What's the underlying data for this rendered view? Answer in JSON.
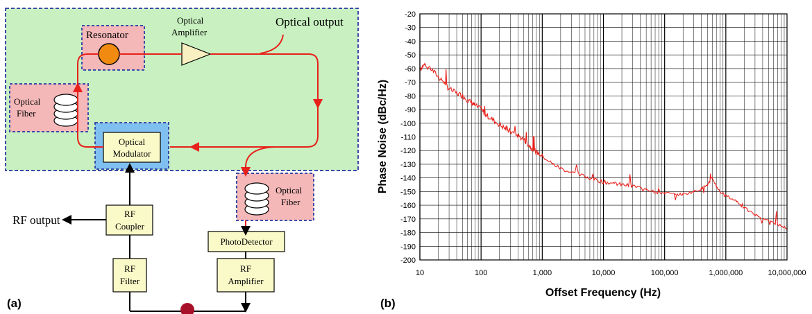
{
  "colors": {
    "green_region": "#c8f0c0",
    "pink_box": "#f5b8b8",
    "blue_box": "#80c0f0",
    "yellow_box": "#fafac8",
    "signal_red": "#e8201a",
    "resonator_orange": "#f08a10",
    "amplifier_fill": "#f8f0c0",
    "dashed_border": "#3a4aa8",
    "node_dark_red": "#a8102a",
    "grid": "#000000"
  },
  "diagram": {
    "panel_label": "(a)",
    "resonator": "Resonator",
    "optical_amplifier": [
      "Optical",
      "Amplifier"
    ],
    "optical_output": "Optical output",
    "optical_fiber_left": [
      "Optical",
      "Fiber"
    ],
    "optical_modulator": [
      "Optical",
      "Modulator"
    ],
    "optical_fiber_right": [
      "Optical",
      "Fiber"
    ],
    "rf_output": "RF output",
    "rf_coupler": [
      "RF",
      "Coupler"
    ],
    "rf_filter": [
      "RF",
      "Filter"
    ],
    "photodetector": "PhotoDetector",
    "rf_amplifier": [
      "RF",
      "Amplifier"
    ]
  },
  "chart": {
    "panel_label": "(b)"
  },
  "chart_data": {
    "type": "line",
    "xscale": "log",
    "xlim": [
      10,
      10000000
    ],
    "ylim": [
      -200,
      -20
    ],
    "xlabel": "Offset Frequency (Hz)",
    "ylabel": "Phase Noise (dBc/Hz)",
    "x_tick_labels": [
      "10",
      "100",
      "1,000",
      "10,000",
      "100,000",
      "1,000,000",
      "10,000,000"
    ],
    "y_ticks": [
      -20,
      -30,
      -40,
      -50,
      -60,
      -70,
      -80,
      -90,
      -100,
      -110,
      -120,
      -130,
      -140,
      -150,
      -160,
      -170,
      -180,
      -190,
      -200
    ],
    "grid": true,
    "series": [
      {
        "color": "#e8201a",
        "x": [
          10,
          12,
          15,
          20,
          25,
          30,
          40,
          50,
          60,
          70,
          80,
          100,
          120,
          150,
          200,
          250,
          300,
          400,
          500,
          600,
          700,
          800,
          1000,
          1500,
          2000,
          3000,
          5000,
          7000,
          10000,
          15000,
          20000,
          30000,
          50000,
          70000,
          100000,
          150000,
          200000,
          300000,
          400000,
          500000,
          600000,
          700000,
          800000,
          1000000,
          1500000,
          2000000,
          3000000,
          5000000,
          7000000,
          10000000
        ],
        "y": [
          -60,
          -57,
          -60,
          -66,
          -70,
          -75,
          -78,
          -80,
          -83,
          -85,
          -87,
          -90,
          -94,
          -97,
          -101,
          -104,
          -106,
          -109,
          -112,
          -116,
          -119,
          -121,
          -124,
          -130,
          -133,
          -136,
          -139,
          -141,
          -143,
          -144,
          -145,
          -146,
          -148,
          -150,
          -151,
          -152,
          -152,
          -150,
          -148,
          -145,
          -140,
          -146,
          -150,
          -153,
          -157,
          -162,
          -167,
          -171,
          -174,
          -177
        ]
      }
    ]
  }
}
